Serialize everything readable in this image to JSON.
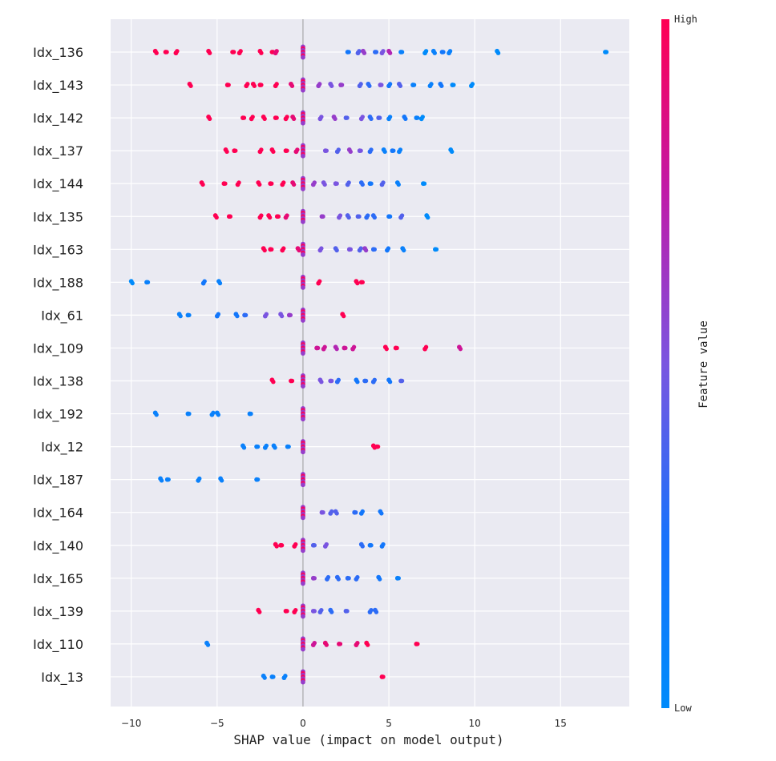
{
  "chart_data": {
    "type": "scatter",
    "subtype": "shap-beeswarm",
    "xlabel": "SHAP value (impact on model output)",
    "xlim": [
      -11.2,
      19.0
    ],
    "xticks": [
      -10,
      -5,
      0,
      5,
      10,
      15
    ],
    "xtick_labels": [
      "−10",
      "−5",
      "0",
      "5",
      "10",
      "15"
    ],
    "colorbar": {
      "label": "Feature value",
      "high_label": "High",
      "low_label": "Low",
      "high_color": "#ff0052",
      "low_color": "#008bfb"
    },
    "features": [
      {
        "name": "Idx_136",
        "points": [
          [
            -8.6,
            1
          ],
          [
            -8.0,
            1
          ],
          [
            -7.4,
            1
          ],
          [
            -5.5,
            1
          ],
          [
            -4.1,
            1
          ],
          [
            -3.7,
            1
          ],
          [
            -2.5,
            1
          ],
          [
            -1.8,
            1
          ],
          [
            -1.6,
            0.9
          ],
          [
            0,
            0.5
          ],
          [
            2.6,
            0.2
          ],
          [
            3.2,
            0.4
          ],
          [
            3.5,
            0.6
          ],
          [
            4.2,
            0.3
          ],
          [
            4.6,
            0.5
          ],
          [
            5.0,
            0.7
          ],
          [
            5.7,
            0.1
          ],
          [
            7.1,
            0
          ],
          [
            7.6,
            0.1
          ],
          [
            8.1,
            0.2
          ],
          [
            8.5,
            0.1
          ],
          [
            11.3,
            0
          ],
          [
            17.6,
            0
          ]
        ]
      },
      {
        "name": "Idx_143",
        "points": [
          [
            -6.6,
            1
          ],
          [
            -4.4,
            1
          ],
          [
            -3.3,
            1
          ],
          [
            -2.9,
            1
          ],
          [
            -2.5,
            1
          ],
          [
            -1.6,
            1
          ],
          [
            -0.7,
            0.9
          ],
          [
            0,
            0.5
          ],
          [
            0.9,
            0.6
          ],
          [
            1.6,
            0.5
          ],
          [
            2.2,
            0.6
          ],
          [
            3.3,
            0.4
          ],
          [
            3.8,
            0.3
          ],
          [
            4.5,
            0.5
          ],
          [
            5.0,
            0.2
          ],
          [
            5.6,
            0.4
          ],
          [
            6.4,
            0.1
          ],
          [
            7.4,
            0.1
          ],
          [
            8.0,
            0.2
          ],
          [
            8.7,
            0
          ],
          [
            9.8,
            0
          ]
        ]
      },
      {
        "name": "Idx_142",
        "points": [
          [
            -5.5,
            1
          ],
          [
            -3.5,
            1
          ],
          [
            -3.0,
            1
          ],
          [
            -2.3,
            1
          ],
          [
            -1.6,
            1
          ],
          [
            -1.0,
            1
          ],
          [
            -0.6,
            0.9
          ],
          [
            0,
            0.5
          ],
          [
            1.0,
            0.5
          ],
          [
            1.8,
            0.6
          ],
          [
            2.5,
            0.4
          ],
          [
            3.4,
            0.5
          ],
          [
            3.9,
            0.3
          ],
          [
            4.4,
            0.4
          ],
          [
            5.0,
            0.1
          ],
          [
            5.9,
            0.2
          ],
          [
            6.6,
            0.1
          ],
          [
            6.9,
            0
          ]
        ]
      },
      {
        "name": "Idx_137",
        "points": [
          [
            -4.5,
            1
          ],
          [
            -4.0,
            1
          ],
          [
            -2.5,
            1
          ],
          [
            -1.8,
            1
          ],
          [
            -1.0,
            1
          ],
          [
            -0.4,
            0.9
          ],
          [
            0,
            0.5
          ],
          [
            1.3,
            0.5
          ],
          [
            2.0,
            0.4
          ],
          [
            2.7,
            0.6
          ],
          [
            3.3,
            0.5
          ],
          [
            3.9,
            0.3
          ],
          [
            4.7,
            0.1
          ],
          [
            5.2,
            0.2
          ],
          [
            5.6,
            0.1
          ],
          [
            8.6,
            0
          ]
        ]
      },
      {
        "name": "Idx_144",
        "points": [
          [
            -5.9,
            1
          ],
          [
            -4.6,
            1
          ],
          [
            -3.8,
            1
          ],
          [
            -2.6,
            1
          ],
          [
            -1.9,
            1
          ],
          [
            -1.2,
            1
          ],
          [
            -0.6,
            0.9
          ],
          [
            0,
            0.5
          ],
          [
            0.6,
            0.6
          ],
          [
            1.2,
            0.5
          ],
          [
            1.9,
            0.5
          ],
          [
            2.6,
            0.4
          ],
          [
            3.4,
            0.3
          ],
          [
            3.9,
            0.2
          ],
          [
            4.6,
            0.4
          ],
          [
            5.5,
            0.1
          ],
          [
            7.0,
            0
          ]
        ]
      },
      {
        "name": "Idx_135",
        "points": [
          [
            -5.1,
            1
          ],
          [
            -4.3,
            1
          ],
          [
            -2.5,
            1
          ],
          [
            -2.0,
            1
          ],
          [
            -1.5,
            1
          ],
          [
            -1.0,
            0.9
          ],
          [
            0,
            0.5
          ],
          [
            1.1,
            0.6
          ],
          [
            2.1,
            0.5
          ],
          [
            2.6,
            0.4
          ],
          [
            3.2,
            0.4
          ],
          [
            3.7,
            0.3
          ],
          [
            4.1,
            0.3
          ],
          [
            5.0,
            0.2
          ],
          [
            5.7,
            0.4
          ],
          [
            7.2,
            0
          ]
        ]
      },
      {
        "name": "Idx_163",
        "points": [
          [
            -2.3,
            1
          ],
          [
            -1.9,
            1
          ],
          [
            -1.2,
            1
          ],
          [
            -0.3,
            0.9
          ],
          [
            0,
            0.5
          ],
          [
            1.0,
            0.5
          ],
          [
            1.9,
            0.4
          ],
          [
            2.7,
            0.5
          ],
          [
            3.3,
            0.4
          ],
          [
            3.6,
            0.6
          ],
          [
            4.1,
            0.3
          ],
          [
            4.9,
            0.2
          ],
          [
            5.8,
            0.1
          ],
          [
            7.7,
            0
          ]
        ]
      },
      {
        "name": "Idx_188",
        "points": [
          [
            -10.0,
            0
          ],
          [
            -9.1,
            0.1
          ],
          [
            -5.8,
            0.2
          ],
          [
            -4.9,
            0.1
          ],
          [
            0,
            0.9
          ],
          [
            0.9,
            1
          ],
          [
            3.1,
            1
          ],
          [
            3.4,
            1
          ]
        ]
      },
      {
        "name": "Idx_61",
        "points": [
          [
            -7.2,
            0.1
          ],
          [
            -6.7,
            0.1
          ],
          [
            -5.0,
            0.2
          ],
          [
            -3.9,
            0.2
          ],
          [
            -3.4,
            0.3
          ],
          [
            -2.2,
            0.5
          ],
          [
            -1.3,
            0.5
          ],
          [
            -0.8,
            0.6
          ],
          [
            0,
            0.7
          ],
          [
            2.3,
            1
          ]
        ]
      },
      {
        "name": "Idx_109",
        "points": [
          [
            0,
            0.9
          ],
          [
            0.8,
            0.8
          ],
          [
            1.2,
            0.8
          ],
          [
            1.9,
            0.7
          ],
          [
            2.4,
            0.8
          ],
          [
            2.9,
            0.8
          ],
          [
            4.8,
            1
          ],
          [
            5.4,
            1
          ],
          [
            7.1,
            1
          ],
          [
            9.1,
            0.8
          ]
        ]
      },
      {
        "name": "Idx_138",
        "points": [
          [
            -1.8,
            1
          ],
          [
            -0.7,
            1
          ],
          [
            0,
            0.6
          ],
          [
            1.0,
            0.5
          ],
          [
            1.6,
            0.5
          ],
          [
            2.0,
            0.3
          ],
          [
            3.1,
            0.2
          ],
          [
            3.6,
            0.3
          ],
          [
            4.1,
            0.3
          ],
          [
            5.0,
            0.2
          ],
          [
            5.7,
            0.4
          ]
        ]
      },
      {
        "name": "Idx_192",
        "points": [
          [
            -8.6,
            0.1
          ],
          [
            -6.7,
            0.1
          ],
          [
            -5.3,
            0.1
          ],
          [
            -5.0,
            0.1
          ],
          [
            -3.1,
            0.1
          ],
          [
            0,
            1
          ]
        ]
      },
      {
        "name": "Idx_12",
        "points": [
          [
            -3.5,
            0.1
          ],
          [
            -2.7,
            0.1
          ],
          [
            -2.2,
            0.1
          ],
          [
            -1.7,
            0.1
          ],
          [
            -0.9,
            0.1
          ],
          [
            0,
            1
          ],
          [
            4.1,
            1
          ],
          [
            4.3,
            1
          ]
        ]
      },
      {
        "name": "Idx_187",
        "points": [
          [
            -8.3,
            0.1
          ],
          [
            -7.9,
            0.1
          ],
          [
            -6.1,
            0.1
          ],
          [
            -4.8,
            0.1
          ],
          [
            -2.7,
            0.1
          ],
          [
            0,
            1
          ]
        ]
      },
      {
        "name": "Idx_164",
        "points": [
          [
            0,
            0.8
          ],
          [
            1.1,
            0.5
          ],
          [
            1.6,
            0.4
          ],
          [
            1.9,
            0.4
          ],
          [
            3.0,
            0.3
          ],
          [
            3.4,
            0.2
          ],
          [
            4.5,
            0.2
          ]
        ]
      },
      {
        "name": "Idx_140",
        "points": [
          [
            -1.6,
            1
          ],
          [
            -1.3,
            1
          ],
          [
            -0.5,
            1
          ],
          [
            0,
            0.8
          ],
          [
            0.6,
            0.4
          ],
          [
            1.3,
            0.5
          ],
          [
            3.4,
            0.3
          ],
          [
            3.9,
            0.2
          ],
          [
            4.6,
            0.2
          ]
        ]
      },
      {
        "name": "Idx_165",
        "points": [
          [
            0,
            0.8
          ],
          [
            0.6,
            0.6
          ],
          [
            1.4,
            0.3
          ],
          [
            2.0,
            0.3
          ],
          [
            2.6,
            0.3
          ],
          [
            3.1,
            0.3
          ],
          [
            4.4,
            0.2
          ],
          [
            5.5,
            0.1
          ]
        ]
      },
      {
        "name": "Idx_139",
        "points": [
          [
            -2.6,
            1
          ],
          [
            -1.0,
            1
          ],
          [
            -0.5,
            1
          ],
          [
            0,
            0.8
          ],
          [
            0.6,
            0.5
          ],
          [
            1.0,
            0.4
          ],
          [
            1.6,
            0.3
          ],
          [
            2.5,
            0.4
          ],
          [
            3.9,
            0.3
          ],
          [
            4.2,
            0.3
          ]
        ]
      },
      {
        "name": "Idx_110",
        "points": [
          [
            -5.6,
            0.1
          ],
          [
            0,
            0.8
          ],
          [
            0.6,
            0.8
          ],
          [
            1.3,
            0.9
          ],
          [
            2.1,
            0.9
          ],
          [
            3.1,
            0.9
          ],
          [
            3.7,
            1
          ],
          [
            6.6,
            1
          ]
        ]
      },
      {
        "name": "Idx_13",
        "points": [
          [
            -2.3,
            0.1
          ],
          [
            -1.8,
            0.1
          ],
          [
            -1.1,
            0.1
          ],
          [
            0,
            0.8
          ],
          [
            4.6,
            1
          ]
        ]
      }
    ]
  }
}
